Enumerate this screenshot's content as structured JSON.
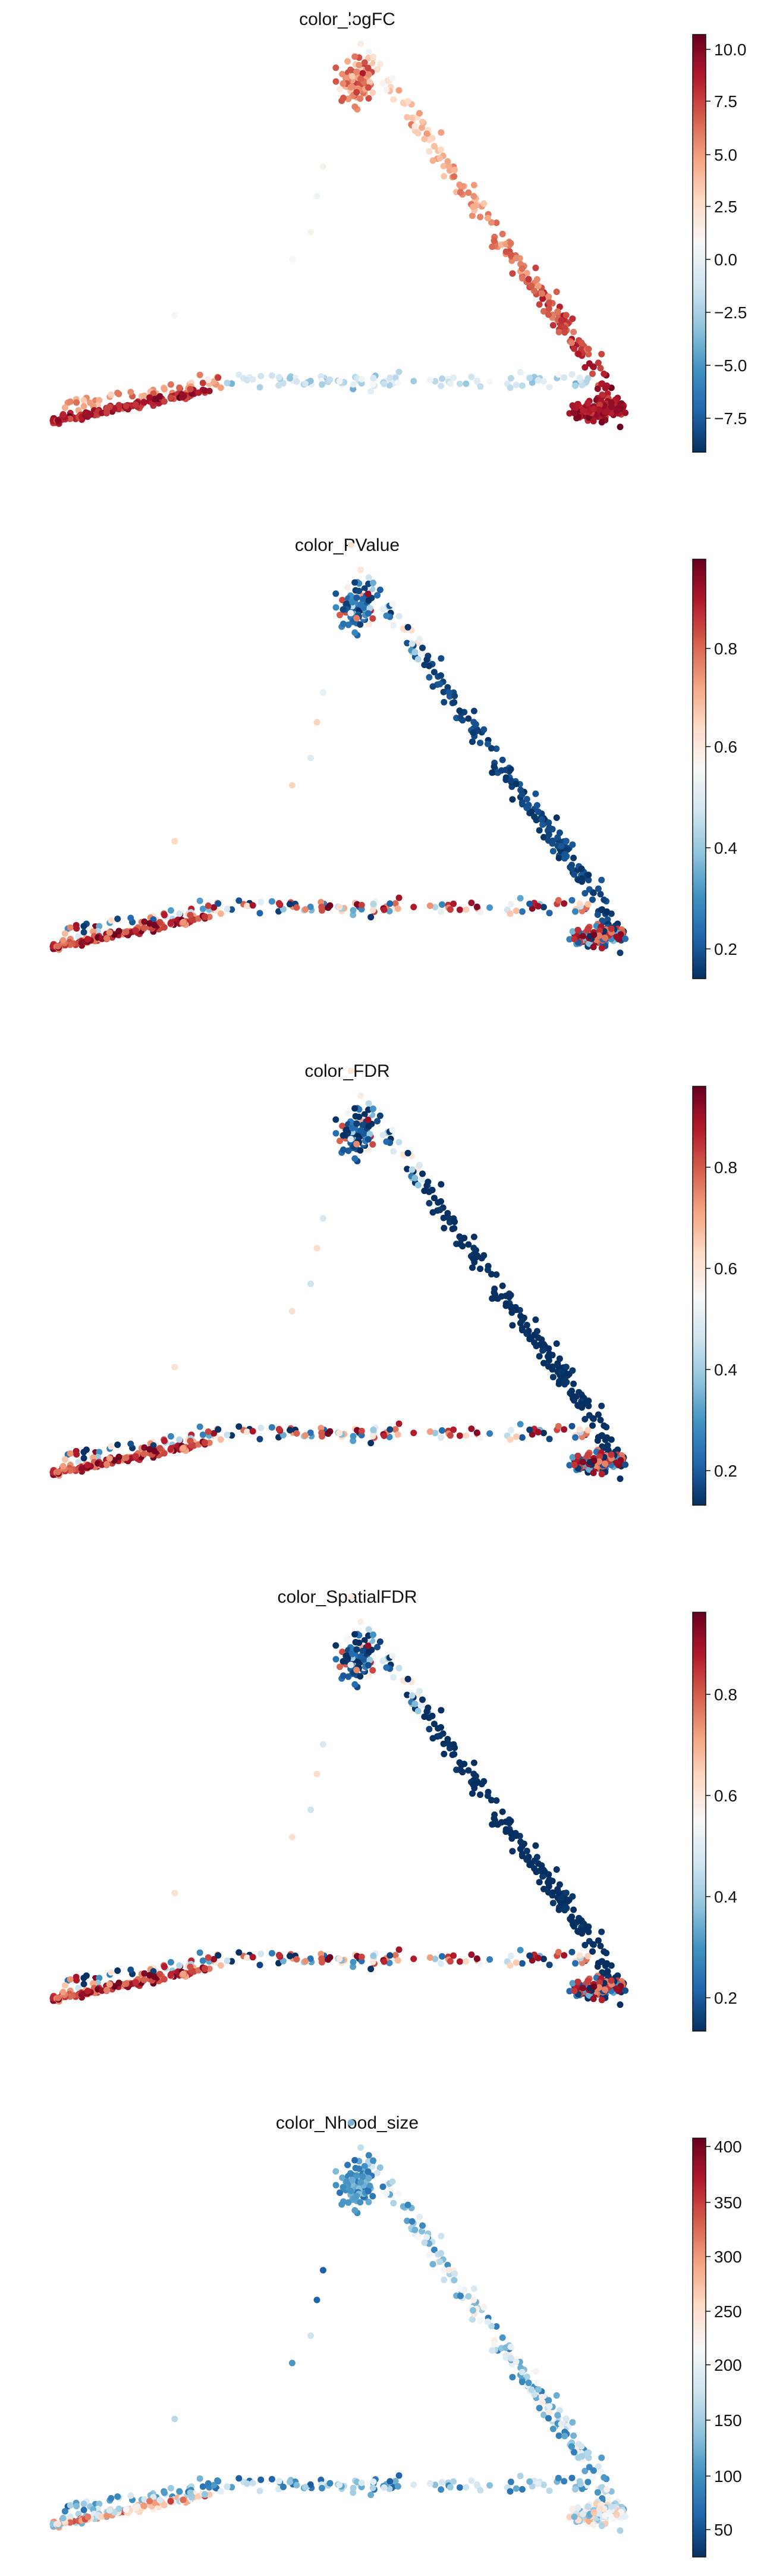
{
  "chart_data": [
    {
      "type": "scatter",
      "title": "color_logFC",
      "colorbar_ticks": [
        "10.0",
        "7.5",
        "5.0",
        "2.5",
        "0.0",
        "−2.5",
        "−5.0",
        "−7.5"
      ],
      "range": [
        -9.0,
        10.5
      ],
      "mode": "logfc"
    },
    {
      "type": "scatter",
      "title": "color_PValue",
      "colorbar_ticks": [
        "0.8",
        "0.6",
        "0.4",
        "0.2"
      ],
      "range": [
        0.0,
        1.0
      ],
      "mode": "pvalue"
    },
    {
      "type": "scatter",
      "title": "color_FDR",
      "colorbar_ticks": [
        "0.8",
        "0.6",
        "0.4",
        "0.2"
      ],
      "range": [
        0.06,
        1.0
      ],
      "mode": "pvalue"
    },
    {
      "type": "scatter",
      "title": "color_SpatialFDR",
      "colorbar_ticks": [
        "0.8",
        "0.6",
        "0.4",
        "0.2"
      ],
      "range": [
        0.06,
        1.0
      ],
      "mode": "pvalue"
    },
    {
      "type": "scatter",
      "title": "color_Nhood_size",
      "colorbar_ticks": [
        "400",
        "350",
        "300",
        "250",
        "200",
        "150",
        "100",
        "50"
      ],
      "range": [
        30,
        405
      ],
      "mode": "size"
    }
  ],
  "colormap": "RdBu_r",
  "colors": {
    "low": "#053061",
    "mid": "#f7f7f7",
    "high": "#67001f"
  }
}
